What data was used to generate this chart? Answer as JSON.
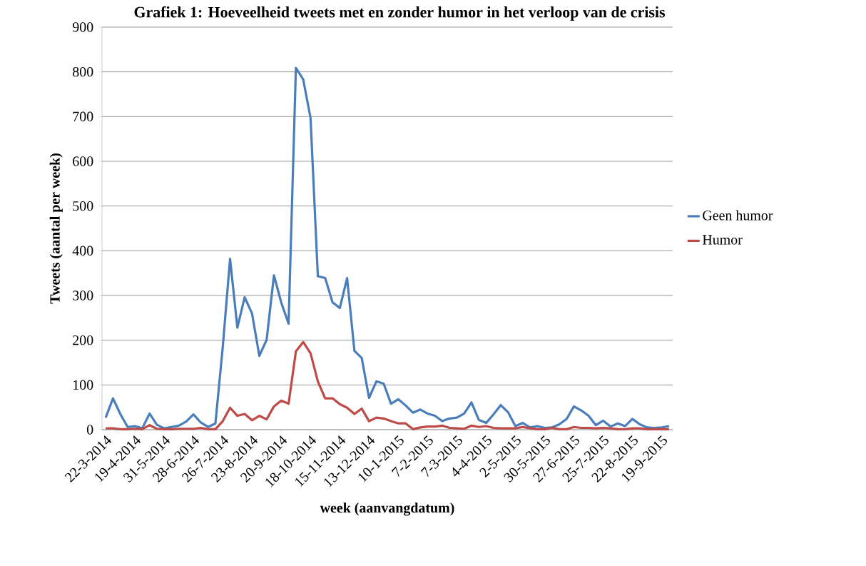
{
  "chart_data": {
    "type": "line",
    "title": "Grafiek 1: Hoeveelheid tweets met en zonder humor in het verloop van de crisis",
    "xlabel": "week (aanvangdatum)",
    "ylabel": "Tweets (aantal per week)",
    "categories": [
      "22-3-2014",
      null,
      null,
      null,
      "19-4-2014",
      null,
      null,
      null,
      "31-5-2014",
      null,
      null,
      null,
      "28-6-2014",
      null,
      null,
      null,
      "26-7-2014",
      null,
      null,
      null,
      "23-8-2014",
      null,
      null,
      null,
      "20-9-2014",
      null,
      null,
      null,
      "18-10-2014",
      null,
      null,
      null,
      "15-11-2014",
      null,
      null,
      null,
      "13-12-2014",
      null,
      null,
      null,
      "10-1-2015",
      null,
      null,
      null,
      "7-2-2015",
      null,
      null,
      null,
      "7-3-2015",
      null,
      null,
      null,
      "4-4-2015",
      null,
      null,
      null,
      "2-5-2015",
      null,
      null,
      null,
      "30-5-2015",
      null,
      null,
      null,
      "27-6-2015",
      null,
      null,
      null,
      "25-7-2015",
      null,
      null,
      null,
      "22-8-2015",
      null,
      null,
      null,
      "19-9-2015",
      null
    ],
    "series": [
      {
        "name": "Geen humor",
        "color": "#4a7ebb",
        "values": [
          27,
          70,
          35,
          6,
          8,
          3,
          36,
          11,
          3,
          6,
          9,
          18,
          34,
          16,
          6,
          14,
          184,
          382,
          228,
          296,
          260,
          165,
          201,
          345,
          284,
          237,
          809,
          783,
          697,
          343,
          339,
          285,
          272,
          339,
          176,
          160,
          71,
          108,
          103,
          58,
          68,
          54,
          38,
          45,
          36,
          31,
          19,
          25,
          27,
          36,
          61,
          22,
          15,
          34,
          55,
          39,
          8,
          15,
          5,
          8,
          4,
          5,
          12,
          24,
          52,
          43,
          31,
          10,
          20,
          7,
          14,
          8,
          24,
          12,
          5,
          4,
          5,
          8
        ]
      },
      {
        "name": "Humor",
        "color": "#be4b48",
        "values": [
          3,
          3,
          1,
          1,
          2,
          1,
          10,
          2,
          1,
          1,
          2,
          2,
          2,
          4,
          1,
          1,
          19,
          49,
          31,
          35,
          21,
          31,
          23,
          52,
          65,
          58,
          175,
          196,
          171,
          108,
          70,
          70,
          57,
          49,
          35,
          47,
          19,
          27,
          25,
          19,
          14,
          14,
          1,
          5,
          7,
          7,
          9,
          4,
          3,
          2,
          9,
          6,
          8,
          4,
          3,
          3,
          3,
          6,
          3,
          1,
          1,
          4,
          1,
          1,
          6,
          4,
          4,
          3,
          4,
          3,
          1,
          1,
          3,
          3,
          1,
          1,
          1,
          1
        ]
      }
    ],
    "ylim": [
      0,
      900
    ],
    "yticks": [
      0,
      100,
      200,
      300,
      400,
      500,
      600,
      700,
      800,
      900
    ],
    "grid": "y",
    "legend": "right",
    "marker": "none",
    "line_style": "solid"
  }
}
